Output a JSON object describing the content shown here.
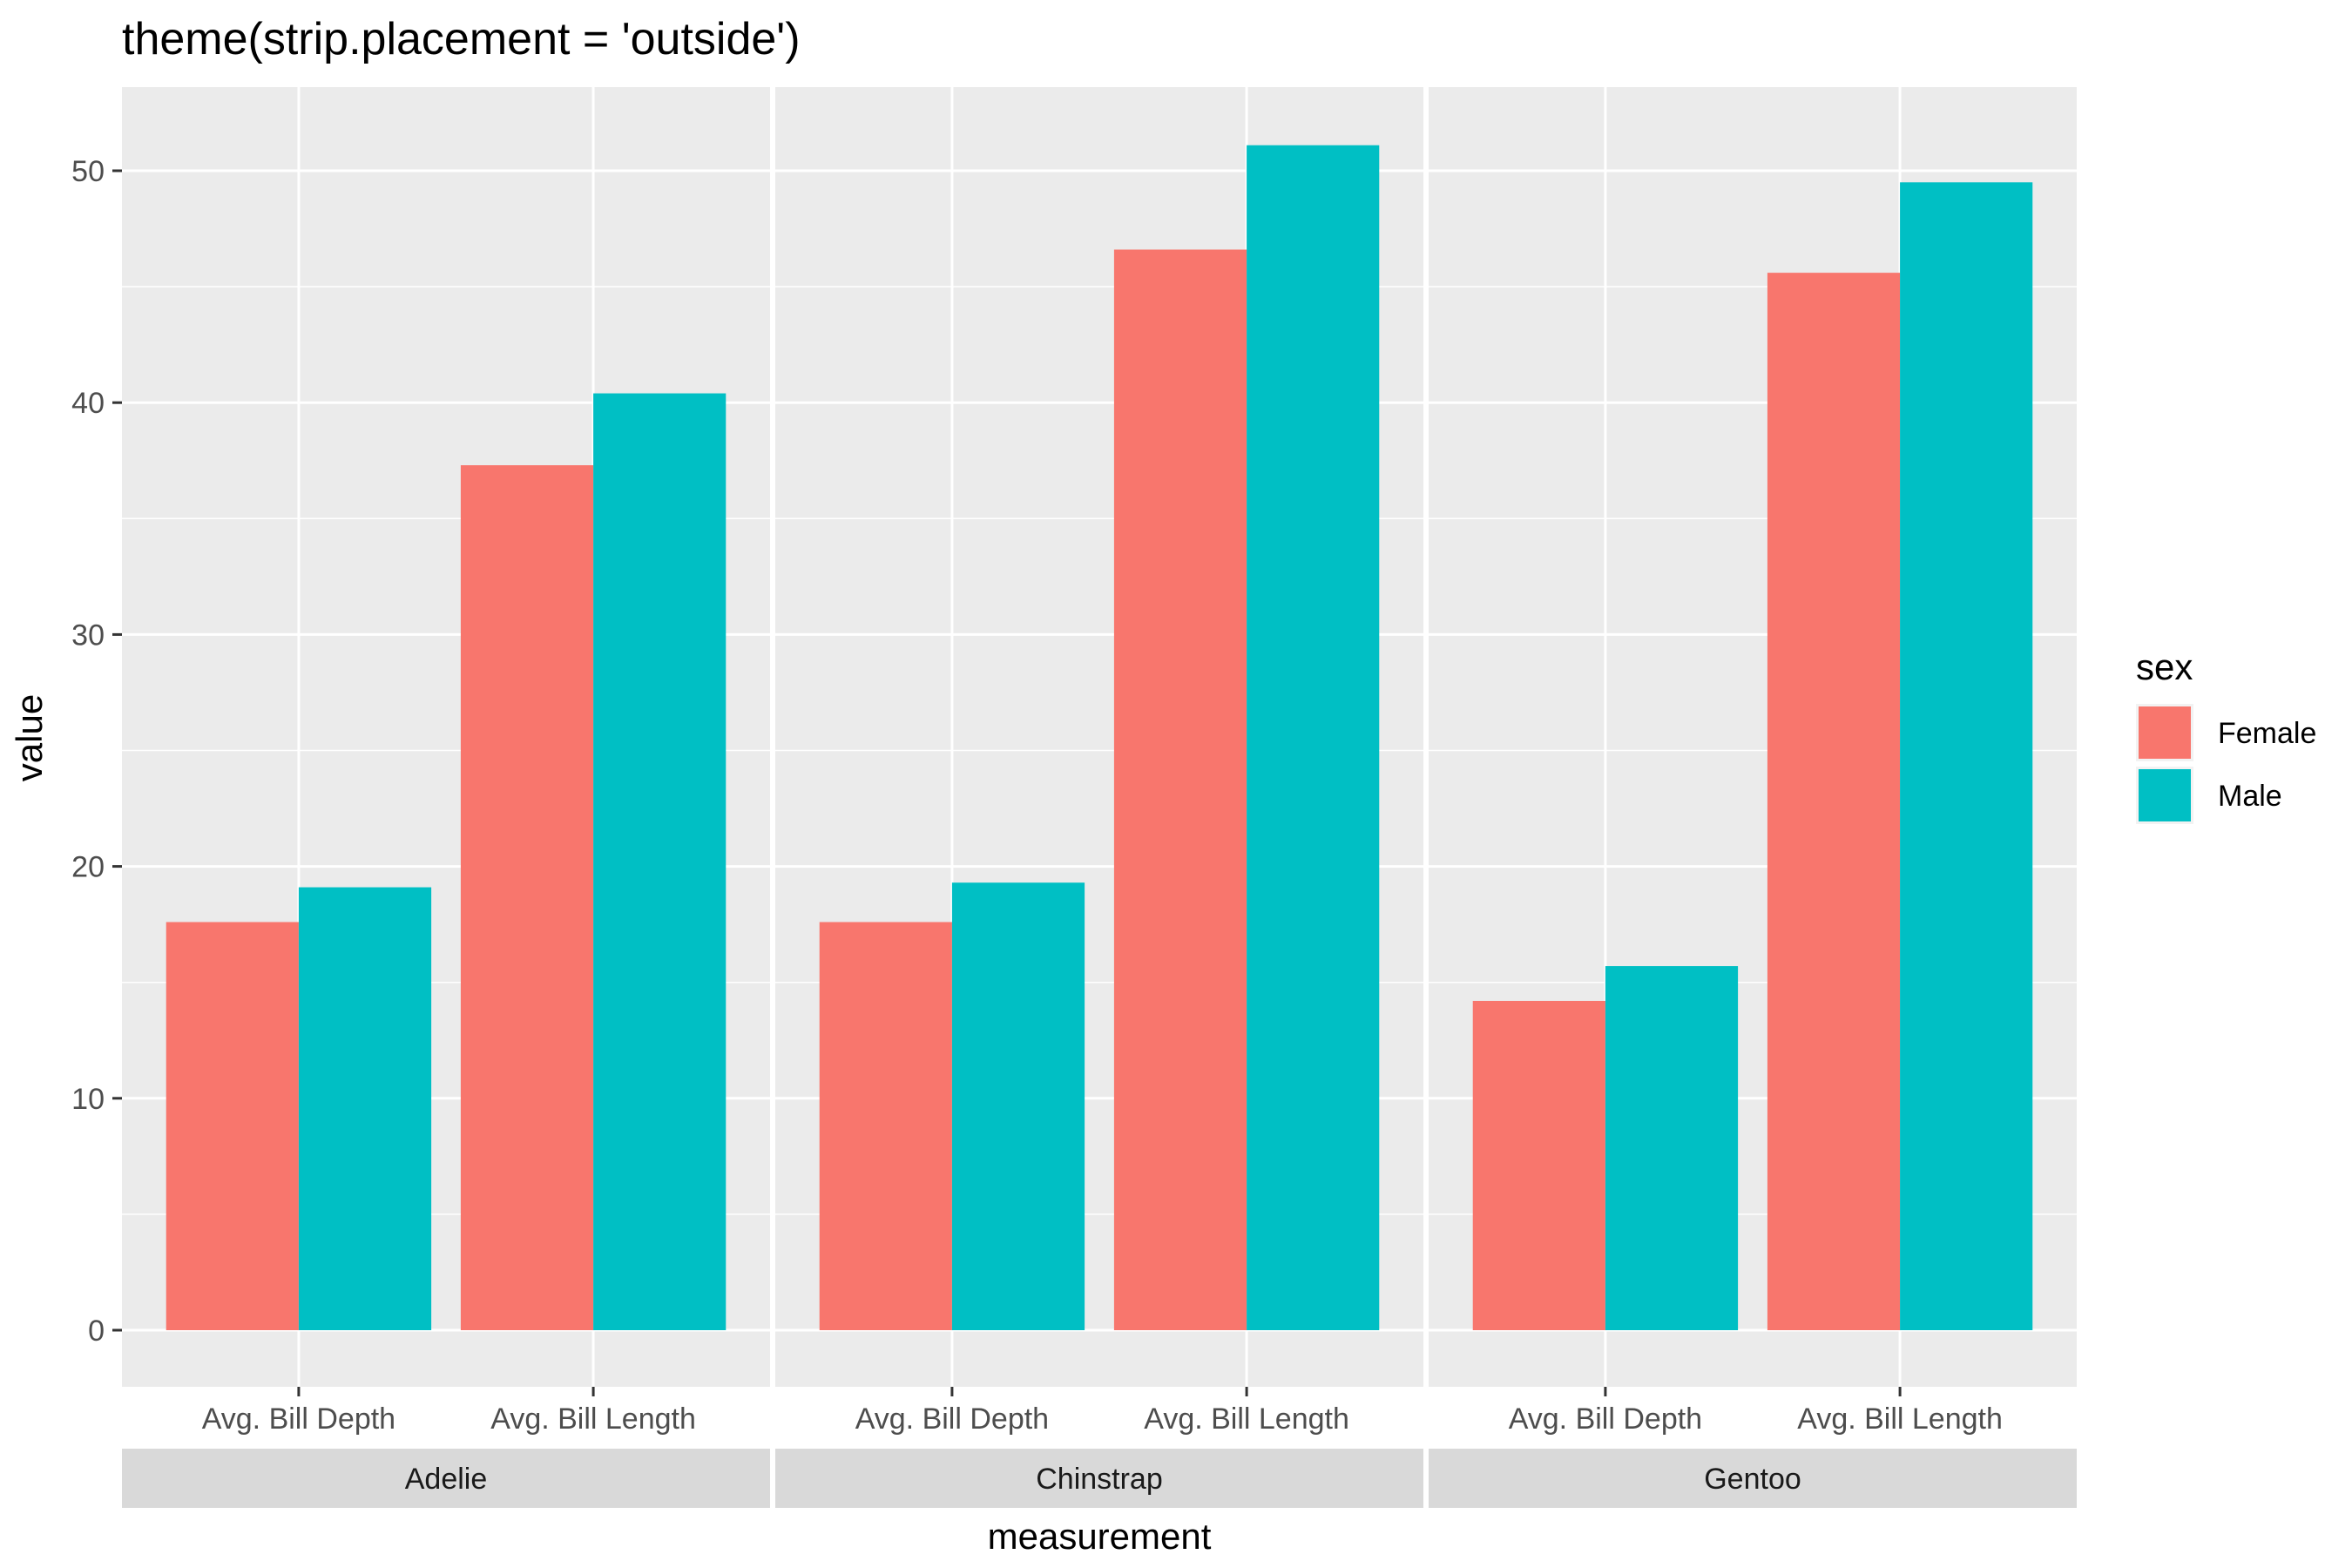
{
  "chart_data": {
    "type": "bar",
    "title": "theme(strip.placement = 'outside')",
    "xlabel": "measurement",
    "ylabel": "value",
    "ylim": [
      0,
      53
    ],
    "yticks": [
      0,
      10,
      20,
      30,
      40,
      50
    ],
    "grid": true,
    "legend": {
      "title": "sex",
      "position": "right"
    },
    "facets": [
      {
        "name": "Adelie",
        "categories": [
          "Avg. Bill Depth",
          "Avg. Bill Length"
        ]
      },
      {
        "name": "Chinstrap",
        "categories": [
          "Avg. Bill Depth",
          "Avg. Bill Length"
        ]
      },
      {
        "name": "Gentoo",
        "categories": [
          "Avg. Bill Depth",
          "Avg. Bill Length"
        ]
      }
    ],
    "series": [
      {
        "name": "Female",
        "color": "#F8766D",
        "values": [
          [
            17.6,
            37.3
          ],
          [
            17.6,
            46.6
          ],
          [
            14.2,
            45.6
          ]
        ]
      },
      {
        "name": "Male",
        "color": "#00BFC4",
        "values": [
          [
            19.1,
            40.4
          ],
          [
            19.3,
            51.1
          ],
          [
            15.7,
            49.5
          ]
        ]
      }
    ]
  }
}
